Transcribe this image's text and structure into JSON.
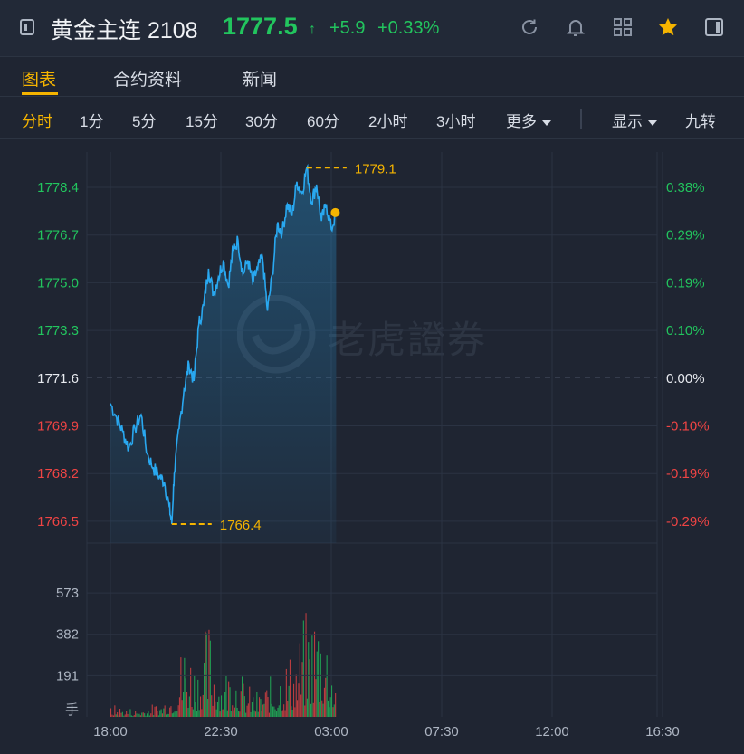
{
  "header": {
    "back_icon": "sidebar-toggle-icon",
    "title": "黄金主连 2108",
    "price": "1777.5",
    "price_arrow": "↑",
    "change": "+5.9",
    "change_pct": "+0.33%",
    "colors": {
      "up": "#22c55e",
      "down": "#ef4444",
      "accent": "#f5b400",
      "line": "#29a8f0"
    },
    "icons": [
      "refresh-icon",
      "bell-icon",
      "grid-icon",
      "star-icon",
      "panel-icon"
    ]
  },
  "tabs": [
    {
      "label": "图表",
      "active": true
    },
    {
      "label": "合约资料",
      "active": false
    },
    {
      "label": "新闻",
      "active": false
    }
  ],
  "intervals": {
    "items": [
      "分时",
      "1分",
      "5分",
      "15分",
      "30分",
      "60分",
      "2小时",
      "3小时",
      "更多"
    ],
    "active": "分时",
    "display": "显示",
    "nine_turn": "九转"
  },
  "watermark": "老虎證券",
  "chart_data": {
    "type": "line",
    "title": "",
    "xlabel": "",
    "ylabel": "",
    "reference_price": 1771.6,
    "y_ticks": [
      "1778.4",
      "1776.7",
      "1775.0",
      "1773.3",
      "1771.6",
      "1769.9",
      "1768.2",
      "1766.5"
    ],
    "y_pct_ticks": [
      "0.38%",
      "0.29%",
      "0.19%",
      "0.10%",
      "0.00%",
      "-0.10%",
      "-0.19%",
      "-0.29%"
    ],
    "ylim": [
      1765.5,
      1779.5
    ],
    "x_ticks": [
      "18:00",
      "22:30",
      "03:00",
      "07:30",
      "12:00",
      "16:30"
    ],
    "high_label": "1779.1",
    "low_label": "1766.4",
    "series": [
      {
        "x_hours": [
          0,
          0.25,
          0.5,
          0.75,
          1.0,
          1.25,
          1.5,
          1.75,
          2.0,
          2.2,
          2.4,
          2.5,
          2.6,
          2.8,
          3.0,
          3.2,
          3.4,
          3.6,
          3.8,
          4.0,
          4.2,
          4.4,
          4.6,
          4.8,
          5.0,
          5.2,
          5.4,
          5.6,
          5.8,
          6.0,
          6.2,
          6.4,
          6.6,
          6.8,
          7.0,
          7.2,
          7.4,
          7.6,
          7.8,
          8.0,
          8.2,
          8.4,
          8.6,
          8.8,
          9.0,
          9.2
        ],
        "values": [
          1770.7,
          1770.2,
          1769.7,
          1769.1,
          1769.8,
          1770.3,
          1768.9,
          1768.4,
          1768.1,
          1767.9,
          1767.0,
          1766.4,
          1768.2,
          1769.8,
          1771.2,
          1772.1,
          1771.5,
          1773.5,
          1774.2,
          1775.5,
          1774.6,
          1775.2,
          1775.8,
          1774.9,
          1776.2,
          1776.5,
          1775.3,
          1775.8,
          1775.0,
          1775.5,
          1775.9,
          1774.0,
          1775.3,
          1777.1,
          1776.8,
          1777.8,
          1777.4,
          1778.6,
          1778.2,
          1779.1,
          1777.9,
          1778.5,
          1777.2,
          1777.8,
          1776.9,
          1777.5
        ]
      }
    ],
    "volume": {
      "unit": "手",
      "y_ticks": [
        "573",
        "382",
        "191"
      ],
      "ylim": [
        0,
        720
      ],
      "x_hours": [
        0,
        1,
        2,
        2.5,
        3,
        3.5,
        4,
        4.5,
        5,
        5.5,
        6,
        6.5,
        7,
        7.5,
        8,
        8.5,
        9,
        9.2
      ],
      "values": [
        60,
        40,
        70,
        150,
        420,
        280,
        480,
        220,
        310,
        160,
        120,
        190,
        290,
        330,
        520,
        610,
        350,
        180
      ]
    },
    "last_point": 1777.5
  }
}
